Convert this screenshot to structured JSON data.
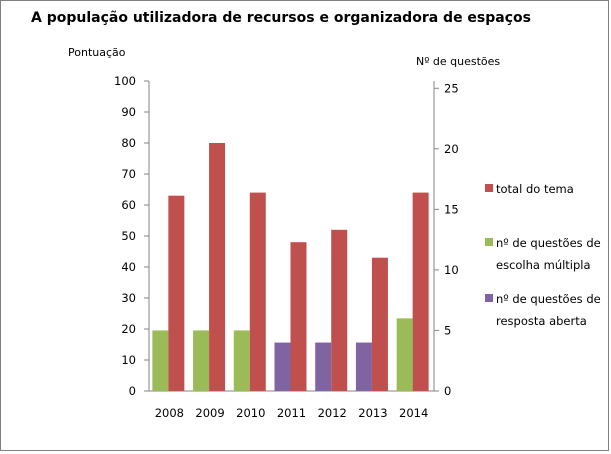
{
  "chart_data": {
    "type": "bar",
    "title": "A população utilizadora de recursos e organizadora de espaços",
    "ylabel_left": "Pontuação",
    "ylabel_right": "Nº de questões",
    "categories": [
      "2008",
      "2009",
      "2010",
      "2011",
      "2012",
      "2013",
      "2014"
    ],
    "ylim_left": [
      0,
      100
    ],
    "yticks_left": [
      "0",
      "10",
      "20",
      "30",
      "40",
      "50",
      "60",
      "70",
      "80",
      "90",
      "100"
    ],
    "ylim_right": [
      0,
      25.6
    ],
    "yticks_right": [
      "0",
      "5",
      "10",
      "15",
      "20",
      "25"
    ],
    "series": [
      {
        "name": "total do tema",
        "axis": "left",
        "color": "#c0504d",
        "values": [
          63,
          80,
          64,
          48,
          52,
          43,
          64
        ]
      },
      {
        "name": "nº de questões de escolha múltipla",
        "legend_lines": [
          "nº de questões de",
          "escolha múltipla"
        ],
        "axis": "right",
        "color": "#9bbb59",
        "values": [
          5,
          5,
          5,
          0,
          0,
          0,
          6
        ]
      },
      {
        "name": "nº de questões de resposta aberta",
        "legend_lines": [
          "nº de questões de",
          "resposta aberta"
        ],
        "axis": "right",
        "color": "#8064a2",
        "values": [
          0,
          0,
          0,
          4,
          4,
          4,
          0
        ]
      }
    ],
    "legend_position": "right",
    "grid": false
  }
}
